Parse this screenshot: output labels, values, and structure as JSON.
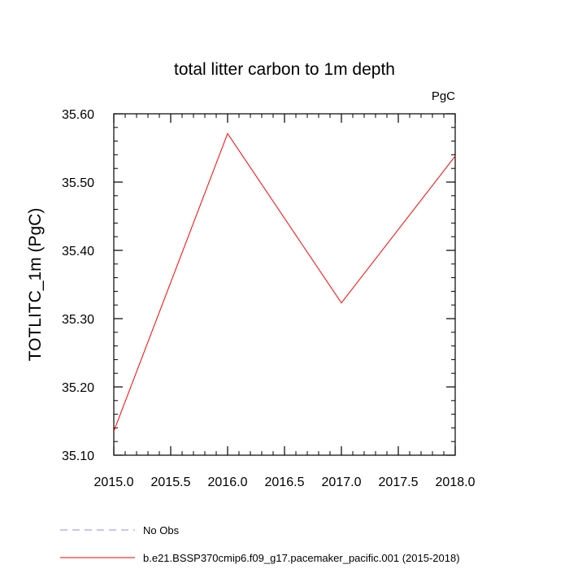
{
  "chart_data": {
    "type": "line",
    "title": "total litter carbon to 1m depth",
    "units_label": "PgC",
    "ylabel": "TOTLITC_1m  (PgC)",
    "xlabel": "",
    "xlim": [
      2015.0,
      2018.0
    ],
    "ylim": [
      35.1,
      35.6
    ],
    "x_ticks": [
      2015.0,
      2015.5,
      2016.0,
      2016.5,
      2017.0,
      2017.5,
      2018.0
    ],
    "x_tick_labels": [
      "2015.0",
      "2015.5",
      "2016.0",
      "2016.5",
      "2017.0",
      "2017.5",
      "2018.0"
    ],
    "y_ticks": [
      35.1,
      35.2,
      35.3,
      35.4,
      35.5,
      35.6
    ],
    "y_tick_labels": [
      "35.10",
      "35.20",
      "35.30",
      "35.40",
      "35.50",
      "35.60"
    ],
    "grid": false,
    "legend_position": "bottom-left",
    "series": [
      {
        "name": "b.e21.BSSP370cmip6.f09_g17.pacemaker_pacific.001 (2015-2018)",
        "color": "#ff0000",
        "dash": "solid",
        "x": [
          2015.0,
          2016.0,
          2017.0,
          2018.0
        ],
        "y": [
          35.135,
          35.571,
          35.323,
          35.538
        ]
      },
      {
        "name": "No Obs",
        "color": "#8c8cff",
        "dash": "dashed",
        "x": [],
        "y": []
      }
    ]
  }
}
